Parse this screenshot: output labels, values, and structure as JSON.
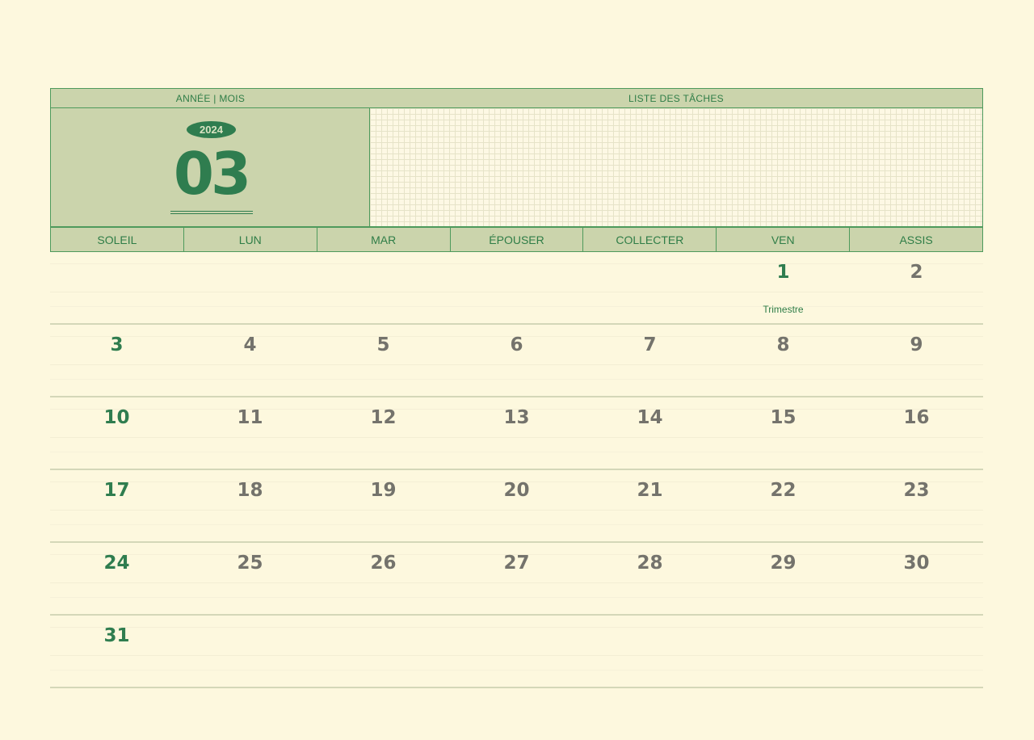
{
  "header": {
    "year_month_label": "ANNÉE | MOIS",
    "tasks_label": "LISTE DES TÂCHES",
    "year": "2024",
    "month": "03"
  },
  "weekdays": [
    "SOLEIL",
    "LUN",
    "MAR",
    "ÉPOUSER",
    "COLLECTER",
    "VEN",
    "ASSIS"
  ],
  "weeks": [
    [
      "",
      "",
      "",
      "",
      "",
      "1",
      "2"
    ],
    [
      "3",
      "4",
      "5",
      "6",
      "7",
      "8",
      "9"
    ],
    [
      "10",
      "11",
      "12",
      "13",
      "14",
      "15",
      "16"
    ],
    [
      "17",
      "18",
      "19",
      "20",
      "21",
      "22",
      "23"
    ],
    [
      "24",
      "25",
      "26",
      "27",
      "28",
      "29",
      "30"
    ],
    [
      "31",
      "",
      "",
      "",
      "",
      "",
      ""
    ]
  ],
  "notes": {
    "day_1": "Trimestre"
  },
  "colors": {
    "accent": "#2f7d4f",
    "header_bg": "#cbd4ac",
    "page_bg": "#fdf8de",
    "day_text": "#74736c"
  }
}
